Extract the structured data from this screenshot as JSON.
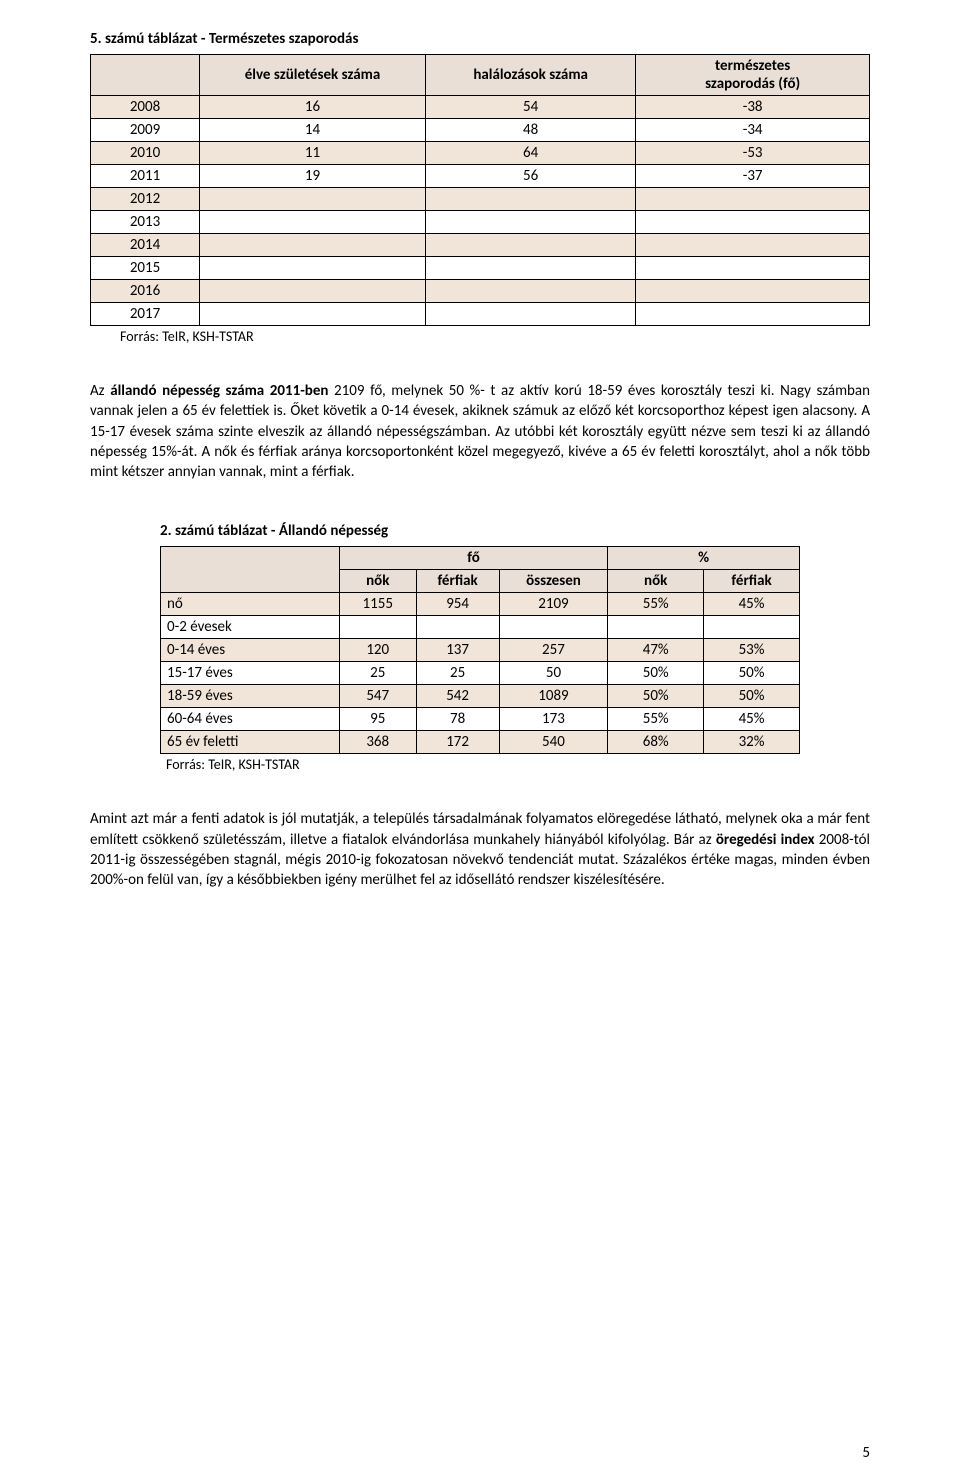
{
  "table1": {
    "title": "5. számú táblázat - Természetes szaporodás",
    "headers": {
      "col1": "",
      "col2": "élve születések száma",
      "col3": "halálozások száma",
      "col4_line1": "természetes",
      "col4_line2": "szaporodás (fő)"
    },
    "rows": [
      {
        "year": "2008",
        "births": "16",
        "deaths": "54",
        "growth": "-38",
        "shade": true
      },
      {
        "year": "2009",
        "births": "14",
        "deaths": "48",
        "growth": "-34",
        "shade": false
      },
      {
        "year": "2010",
        "births": "11",
        "deaths": "64",
        "growth": "-53",
        "shade": true
      },
      {
        "year": "2011",
        "births": "19",
        "deaths": "56",
        "growth": "-37",
        "shade": false
      },
      {
        "year": "2012",
        "births": "",
        "deaths": "",
        "growth": "",
        "shade": true
      },
      {
        "year": "2013",
        "births": "",
        "deaths": "",
        "growth": "",
        "shade": false
      },
      {
        "year": "2014",
        "births": "",
        "deaths": "",
        "growth": "",
        "shade": true
      },
      {
        "year": "2015",
        "births": "",
        "deaths": "",
        "growth": "",
        "shade": false
      },
      {
        "year": "2016",
        "births": "",
        "deaths": "",
        "growth": "",
        "shade": true
      },
      {
        "year": "2017",
        "births": "",
        "deaths": "",
        "growth": "",
        "shade": false
      }
    ],
    "source": "Forrás: TeIR, KSH-TSTAR",
    "colors": {
      "border": "#000000",
      "header_bg": "#e9dfd6",
      "row_shade": "#f1e4d8",
      "row_plain": "#ffffff"
    },
    "col_widths": [
      "14%",
      "29%",
      "27%",
      "30%"
    ]
  },
  "paragraph1": {
    "pre": "Az ",
    "bold1": "állandó népesség száma 2011-ben",
    "rest": " 2109 fő, melynek 50 %- t az aktív korú 18-59 éves korosztály teszi ki. Nagy számban vannak jelen a 65 év felettiek is. Őket követik a 0-14 évesek, akiknek számuk az előző két korcsoporthoz képest igen alacsony. A 15-17 évesek száma szinte elveszik az állandó népességszámban. Az utóbbi két korosztály együtt nézve sem teszi ki az állandó népesség 15%-át. A nők és férfiak aránya korcsoportonként közel megegyező, kivéve a 65 év feletti korosztályt, ahol a nők több mint kétszer annyian vannak, mint a férfiak."
  },
  "table2": {
    "title": "2. számú táblázat - Állandó népesség",
    "group_headers": {
      "fo": "fő",
      "pct": "%"
    },
    "sub_headers": {
      "nok": "nők",
      "ferfiak": "férfiak",
      "osszesen": "összesen",
      "nok2": "nők",
      "ferfiak2": "férfiak"
    },
    "rows": [
      {
        "label": "nő",
        "v": [
          "1155",
          "954",
          "2109",
          "55%",
          "45%"
        ],
        "shade": true
      },
      {
        "label": "0-2 évesek",
        "v": [
          "",
          "",
          "",
          "",
          ""
        ],
        "shade": false
      },
      {
        "label": "0-14 éves",
        "v": [
          "120",
          "137",
          "257",
          "47%",
          "53%"
        ],
        "shade": true
      },
      {
        "label": "15-17 éves",
        "v": [
          "25",
          "25",
          "50",
          "50%",
          "50%"
        ],
        "shade": false
      },
      {
        "label": "18-59 éves",
        "v": [
          "547",
          "542",
          "1089",
          "50%",
          "50%"
        ],
        "shade": true
      },
      {
        "label": "60-64 éves",
        "v": [
          "95",
          "78",
          "173",
          "55%",
          "45%"
        ],
        "shade": false
      },
      {
        "label": "65 év feletti",
        "v": [
          "368",
          "172",
          "540",
          "68%",
          "32%"
        ],
        "shade": true
      }
    ],
    "source": "Forrás: TeIR, KSH-TSTAR",
    "col_widths": [
      "28%",
      "12%",
      "13%",
      "17%",
      "15%",
      "15%"
    ]
  },
  "paragraph2": {
    "part1": "Amint azt már a fenti adatok is jól mutatják, a település társadalmának folyamatos elöregedése látható, melynek oka a már fent említett csökkenő születésszám, illetve a fiatalok elvándorlása munkahely hiányából kifolyólag. Bár az ",
    "bold": "öregedési index",
    "part2": " 2008-tól 2011-ig összességében stagnál, mégis 2010-ig fokozatosan növekvő tendenciát mutat. Százalékos értéke magas, minden évben 200%-on felül van, így a későbbiekben igény merülhet fel az idősellátó rendszer kiszélesítésére."
  },
  "page_number": "5"
}
